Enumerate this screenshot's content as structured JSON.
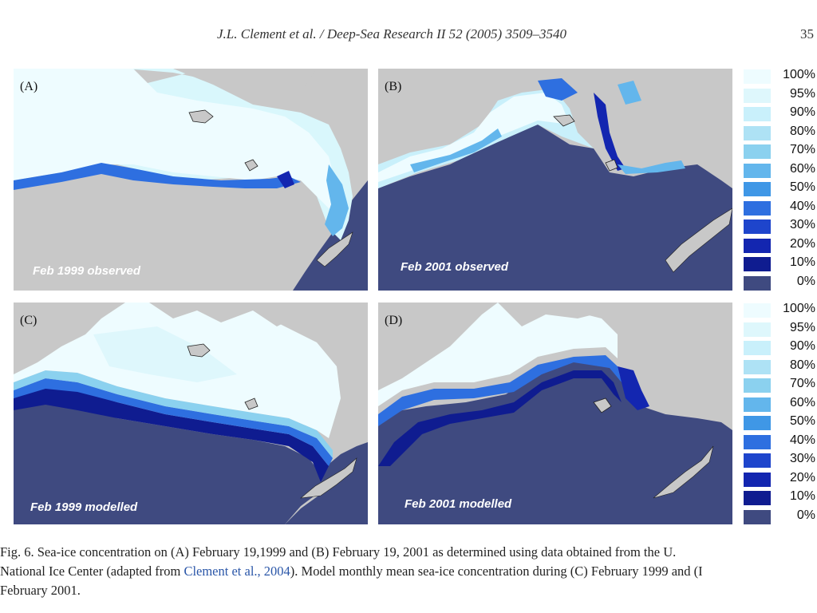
{
  "header": {
    "journal": "J.L. Clement et al. / Deep-Sea Research II 52 (2005) 3509–3540",
    "page_number": "35"
  },
  "panels": [
    {
      "id": "A",
      "label": "(A)",
      "caption": "Feb 1999 observed"
    },
    {
      "id": "B",
      "label": "(B)",
      "caption": "Feb 2001 observed"
    },
    {
      "id": "C",
      "label": "(C)",
      "caption": "Feb 1999 modelled"
    },
    {
      "id": "D",
      "label": "(D)",
      "caption": "Feb 2001 modelled"
    }
  ],
  "legend": {
    "labels": [
      "100%",
      "95%",
      "90%",
      "80%",
      "70%",
      "60%",
      "50%",
      "40%",
      "30%",
      "20%",
      "10%",
      "0%"
    ],
    "colors": [
      "#eefcff",
      "#def7fc",
      "#c9f0fb",
      "#aee2f5",
      "#8bd1ef",
      "#63b6ec",
      "#3f97e6",
      "#2e6fe0",
      "#1e45cc",
      "#1326b0",
      "#0f1c90",
      "#3f4a80"
    ]
  },
  "colors": {
    "land": "#c8c8c8",
    "open_water": "#3f4a80",
    "ice_full": "#eefcff"
  },
  "figure_caption": {
    "line1": "Fig. 6. Sea-ice concentration on (A) February 19,1999 and (B) February 19, 2001 as determined using data obtained from the U.",
    "line2_a": "National Ice Center (adapted from ",
    "line2_link": "Clement et al., 2004",
    "line2_b": "). Model monthly mean sea-ice concentration during (C) February 1999 and (I",
    "line3": "February 2001."
  }
}
